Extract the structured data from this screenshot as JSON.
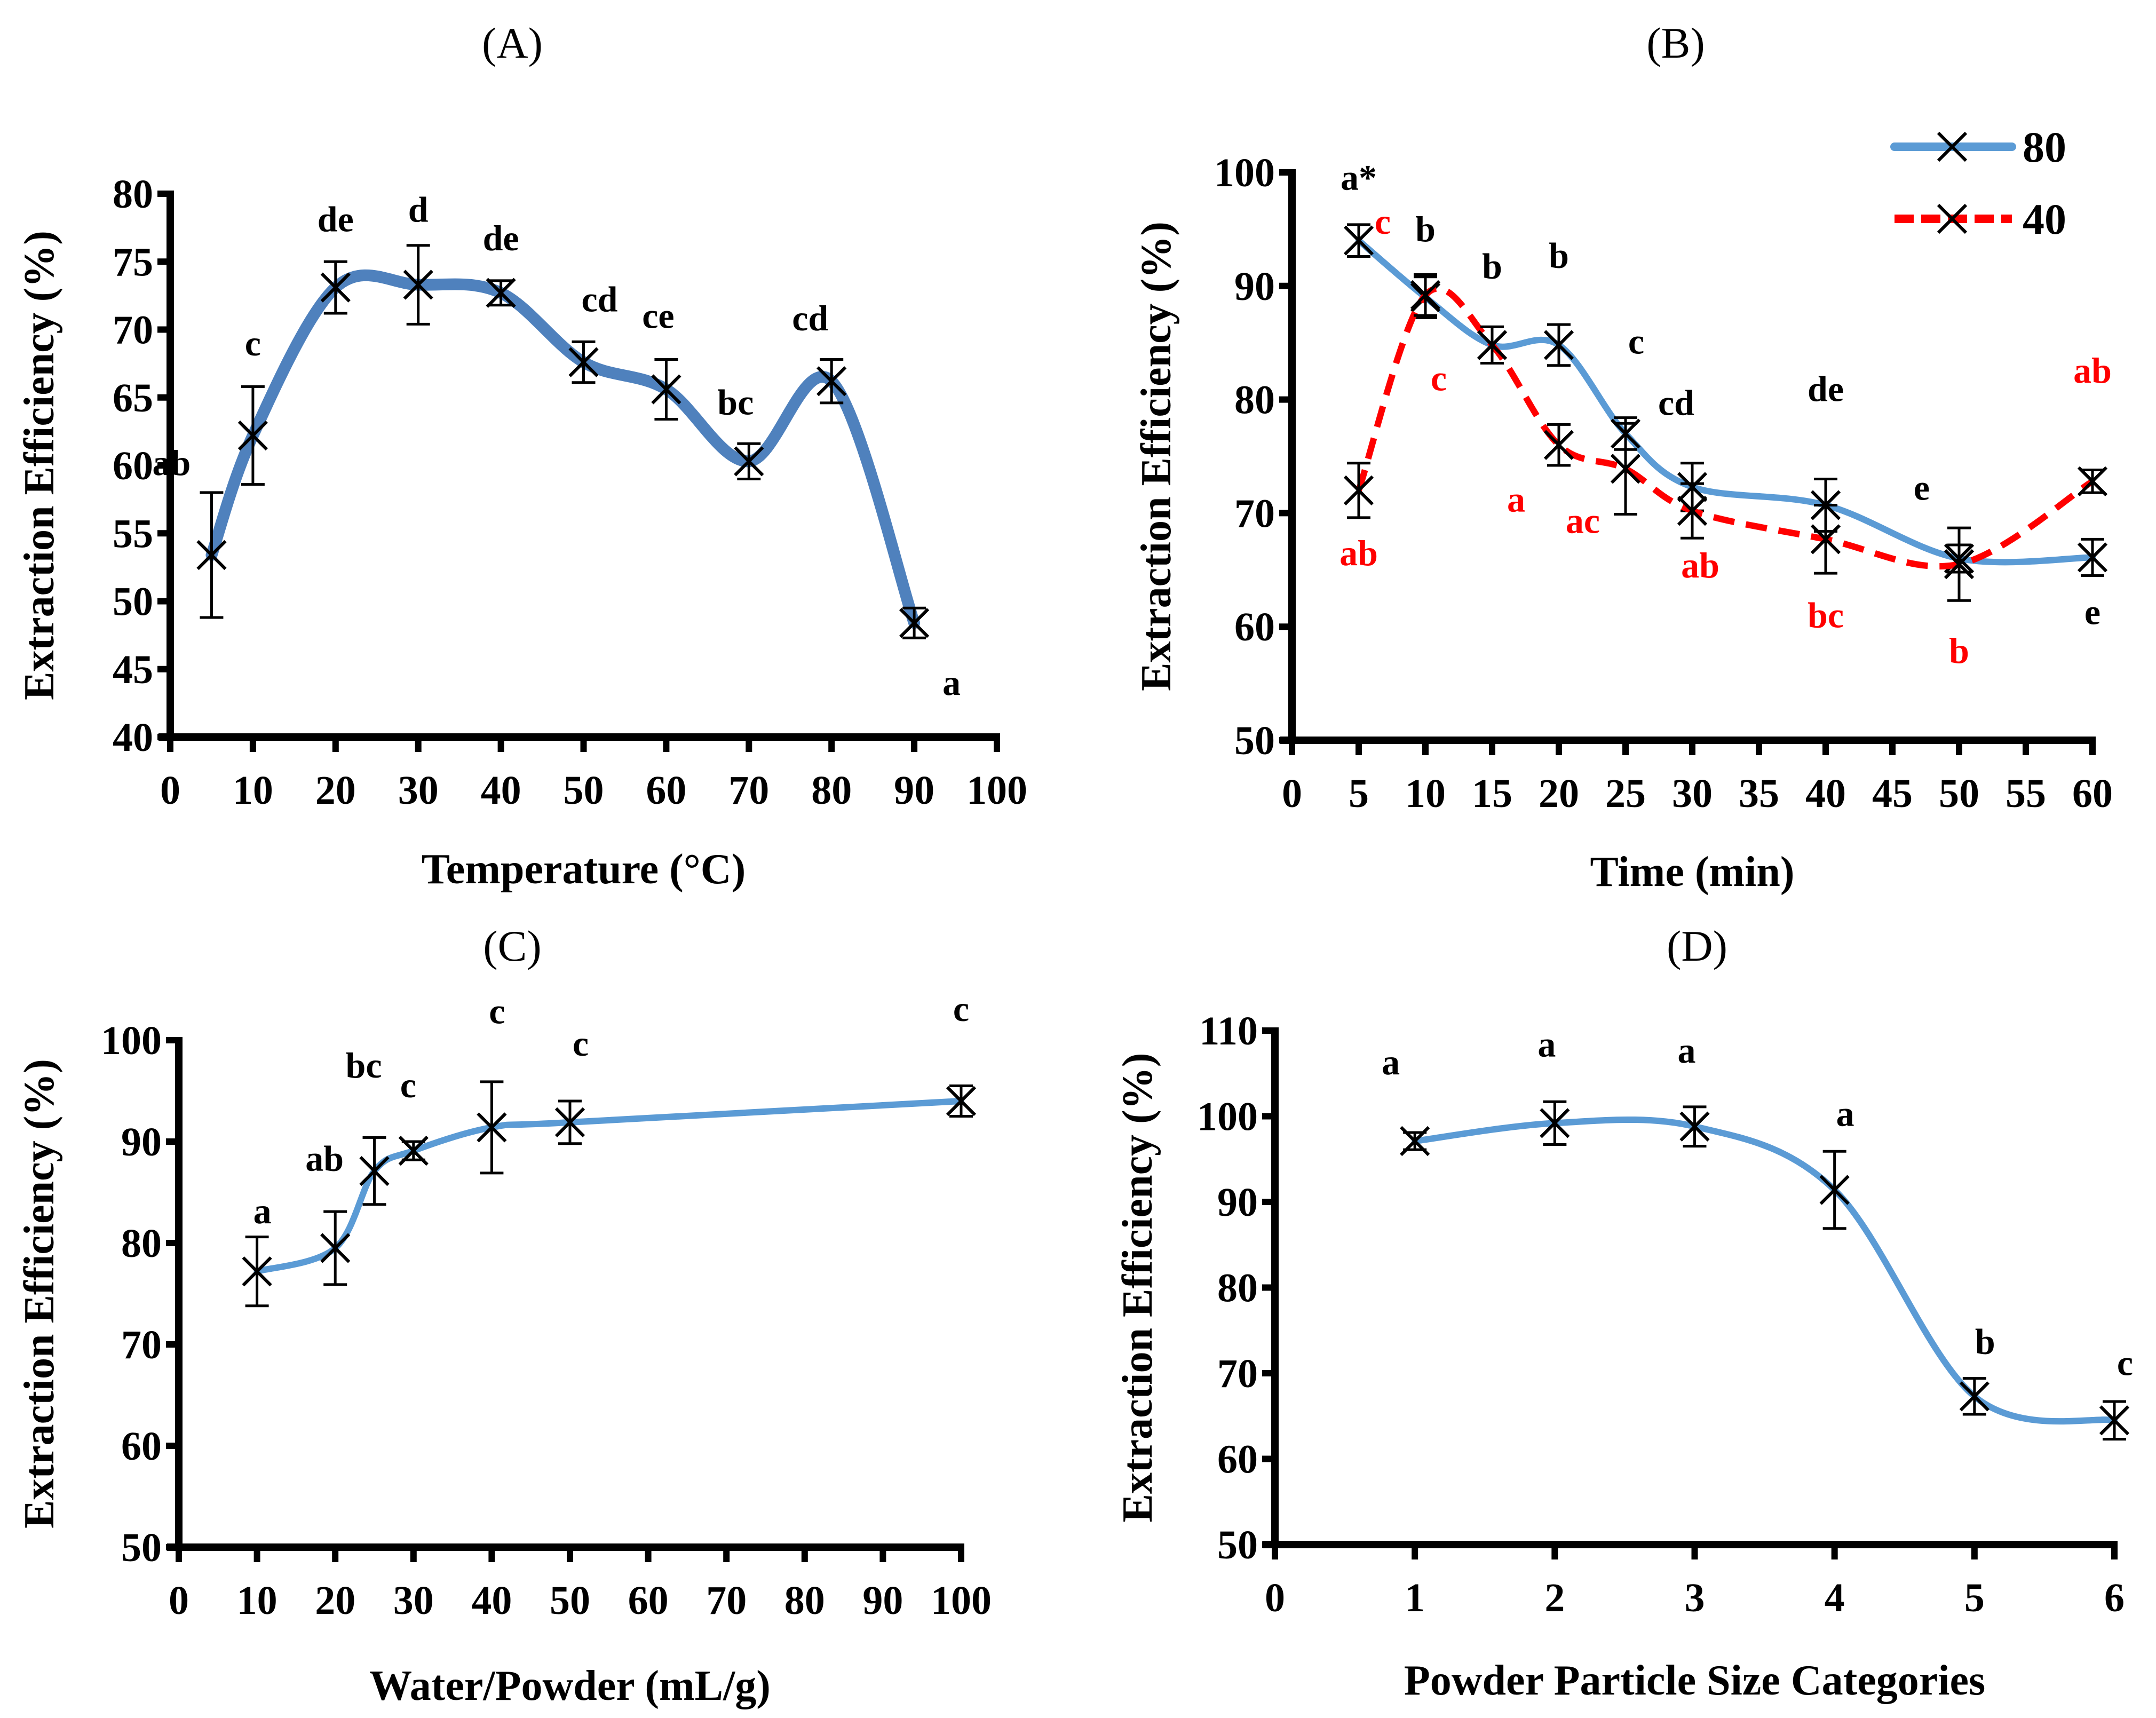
{
  "chart_data": [
    {
      "panel": "(A)",
      "type": "line",
      "title": "(A)",
      "xlabel": "Temperature (°C)",
      "ylabel": "Extraction Efficiency (%)",
      "xlim": [
        0,
        100
      ],
      "ylim": [
        40,
        80
      ],
      "xticks": [
        0,
        10,
        20,
        30,
        40,
        50,
        60,
        70,
        80,
        90,
        100
      ],
      "yticks": [
        40,
        45,
        50,
        55,
        60,
        65,
        70,
        75,
        80
      ],
      "grid": false,
      "legend": null,
      "series": [
        {
          "name": "Extraction efficiency",
          "color": "#4F81BD",
          "line_style": "solid",
          "marker": "x",
          "x": [
            5,
            10,
            20,
            30,
            40,
            50,
            60,
            70,
            80,
            90
          ],
          "values": [
            53.4,
            62.2,
            73.1,
            73.3,
            72.7,
            67.6,
            65.6,
            60.3,
            66.2,
            48.4
          ],
          "error": [
            4.6,
            3.6,
            1.9,
            2.9,
            0.9,
            1.5,
            2.2,
            1.3,
            1.6,
            1.1
          ],
          "labels": [
            "ab",
            "c",
            "de",
            "d",
            "de",
            "cd",
            "ce",
            "bc",
            "cd",
            "a"
          ],
          "label_color": "#000000"
        }
      ]
    },
    {
      "panel": "(B)",
      "type": "line",
      "title": "(B)",
      "xlabel": "Time (min)",
      "ylabel": "Extraction Efficiency (%)",
      "xlim": [
        0,
        60
      ],
      "ylim": [
        50,
        100
      ],
      "xticks": [
        0,
        5,
        10,
        15,
        20,
        25,
        30,
        35,
        40,
        45,
        50,
        55,
        60
      ],
      "yticks": [
        50,
        60,
        70,
        80,
        90,
        100
      ],
      "grid": false,
      "legend": "top-right",
      "series": [
        {
          "name": "80",
          "color": "#5B9BD5",
          "line_style": "solid",
          "marker": "x",
          "x": [
            5,
            10,
            15,
            20,
            25,
            30,
            40,
            50,
            60
          ],
          "values": [
            94.0,
            89.0,
            84.8,
            84.8,
            77.0,
            72.3,
            70.7,
            66.0,
            66.1
          ],
          "error": [
            1.4,
            1.8,
            1.6,
            1.8,
            1.4,
            2.1,
            2.3,
            1.2,
            1.6
          ],
          "labels": [
            "a*",
            "b",
            "b",
            "b",
            "c",
            "cd",
            "de",
            "e",
            "e"
          ],
          "label_color": "#000000"
        },
        {
          "name": "40",
          "color": "#FF0000",
          "line_style": "dashed",
          "marker": "x",
          "x": [
            5,
            10,
            15,
            20,
            25,
            30,
            40,
            50,
            60
          ],
          "values": [
            72.0,
            89.2,
            84.8,
            76.0,
            73.9,
            70.2,
            67.7,
            65.5,
            72.8
          ],
          "error": [
            2.4,
            1.8,
            1.6,
            1.8,
            4.0,
            2.4,
            3.0,
            3.2,
            1.0
          ],
          "labels": [
            "ab",
            "c",
            "c",
            "a",
            "ac",
            "ab",
            "bc",
            "b",
            "ab"
          ],
          "label_color": "#FF0000"
        }
      ]
    },
    {
      "panel": "(C)",
      "type": "line",
      "title": "(C)",
      "xlabel": "Water/Powder (mL/g)",
      "ylabel": "Extraction Efficiency (%)",
      "xlim": [
        0,
        100
      ],
      "ylim": [
        50,
        100
      ],
      "xticks": [
        0,
        10,
        20,
        30,
        40,
        50,
        60,
        70,
        80,
        90,
        100
      ],
      "yticks": [
        50,
        60,
        70,
        80,
        90,
        100
      ],
      "grid": false,
      "legend": null,
      "series": [
        {
          "name": "Extraction efficiency",
          "color": "#5B9BD5",
          "line_style": "solid",
          "marker": "x",
          "x": [
            10,
            20,
            25,
            30,
            40,
            50,
            100
          ],
          "values": [
            77.2,
            79.5,
            87.1,
            89.1,
            91.4,
            91.9,
            94.0
          ],
          "error": [
            3.4,
            3.6,
            3.3,
            0.9,
            4.5,
            2.1,
            1.5
          ],
          "labels": [
            "a",
            "ab",
            "bc",
            "c",
            "c",
            "c",
            "c"
          ],
          "label_color": "#000000"
        }
      ]
    },
    {
      "panel": "(D)",
      "type": "line",
      "title": "(D)",
      "xlabel": "Powder Particle Size Categories",
      "ylabel": "Extraction Efficiency (%)",
      "xlim": [
        0,
        6
      ],
      "ylim": [
        50,
        110
      ],
      "xticks": [
        0,
        1,
        2,
        3,
        4,
        5,
        6
      ],
      "yticks": [
        50,
        60,
        70,
        80,
        90,
        100,
        110
      ],
      "grid": false,
      "legend": null,
      "series": [
        {
          "name": "Extraction efficiency",
          "color": "#5B9BD5",
          "line_style": "solid",
          "marker": "x",
          "x": [
            1,
            2,
            3,
            4,
            5,
            6
          ],
          "values": [
            97.1,
            99.2,
            98.8,
            91.4,
            67.3,
            64.5
          ],
          "error": [
            1.0,
            2.5,
            2.3,
            4.5,
            2.1,
            2.2
          ],
          "labels": [
            "a",
            "a",
            "a",
            "a",
            "b",
            "c"
          ],
          "label_color": "#000000"
        }
      ]
    }
  ]
}
